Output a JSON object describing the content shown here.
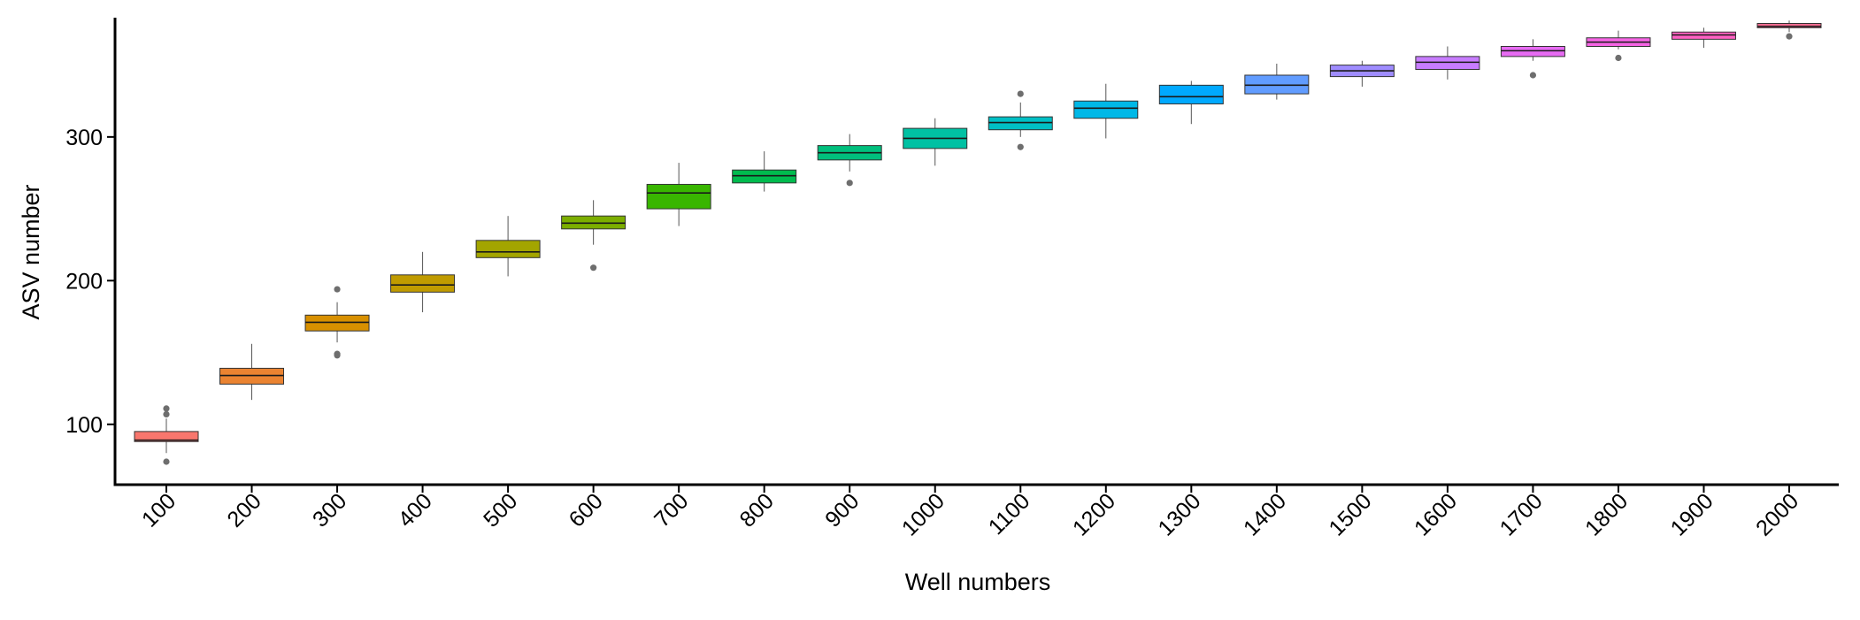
{
  "chart_data": {
    "type": "box",
    "title": "",
    "xlabel": "Well numbers",
    "ylabel": "ASV number",
    "ylim": [
      58,
      383
    ],
    "yticks": [
      100,
      200,
      300
    ],
    "grid": false,
    "legend": "none",
    "categories": [
      "100",
      "200",
      "300",
      "400",
      "500",
      "600",
      "700",
      "800",
      "900",
      "1000",
      "1100",
      "1200",
      "1300",
      "1400",
      "1500",
      "1600",
      "1700",
      "1800",
      "1900",
      "2000"
    ],
    "boxes": [
      {
        "label": "100",
        "color": "#F8766D",
        "whisker_low": 80,
        "q1": 88,
        "median": 89,
        "q3": 95,
        "whisker_high": 104,
        "outliers": [
          74,
          107,
          111
        ]
      },
      {
        "label": "200",
        "color": "#EA8331",
        "whisker_low": 117,
        "q1": 128,
        "median": 134,
        "q3": 139,
        "whisker_high": 156,
        "outliers": []
      },
      {
        "label": "300",
        "color": "#D89000",
        "whisker_low": 157,
        "q1": 165,
        "median": 171,
        "q3": 176,
        "whisker_high": 185,
        "outliers": [
          148,
          149,
          194
        ]
      },
      {
        "label": "400",
        "color": "#C09B00",
        "whisker_low": 178,
        "q1": 192,
        "median": 197,
        "q3": 204,
        "whisker_high": 220,
        "outliers": []
      },
      {
        "label": "500",
        "color": "#A3A500",
        "whisker_low": 203,
        "q1": 216,
        "median": 220,
        "q3": 228,
        "whisker_high": 245,
        "outliers": []
      },
      {
        "label": "600",
        "color": "#7CAE00",
        "whisker_low": 225,
        "q1": 236,
        "median": 240,
        "q3": 245,
        "whisker_high": 256,
        "outliers": [
          209
        ]
      },
      {
        "label": "700",
        "color": "#39B600",
        "whisker_low": 238,
        "q1": 250,
        "median": 261,
        "q3": 267,
        "whisker_high": 282,
        "outliers": []
      },
      {
        "label": "800",
        "color": "#00BB4E",
        "whisker_low": 262,
        "q1": 268,
        "median": 273,
        "q3": 277,
        "whisker_high": 290,
        "outliers": []
      },
      {
        "label": "900",
        "color": "#00BF7D",
        "whisker_low": 276,
        "q1": 284,
        "median": 289,
        "q3": 294,
        "whisker_high": 302,
        "outliers": [
          268
        ]
      },
      {
        "label": "1000",
        "color": "#00C1A3",
        "whisker_low": 280,
        "q1": 292,
        "median": 299,
        "q3": 306,
        "whisker_high": 313,
        "outliers": []
      },
      {
        "label": "1100",
        "color": "#00BFC4",
        "whisker_low": 300,
        "q1": 305,
        "median": 310,
        "q3": 314,
        "whisker_high": 324,
        "outliers": [
          293,
          330
        ]
      },
      {
        "label": "1200",
        "color": "#00B8E7",
        "whisker_low": 299,
        "q1": 313,
        "median": 320,
        "q3": 325,
        "whisker_high": 337,
        "outliers": []
      },
      {
        "label": "1300",
        "color": "#00A9FF",
        "whisker_low": 309,
        "q1": 323,
        "median": 328,
        "q3": 336,
        "whisker_high": 339,
        "outliers": []
      },
      {
        "label": "1400",
        "color": "#619CFF",
        "whisker_low": 326,
        "q1": 330,
        "median": 336,
        "q3": 343,
        "whisker_high": 351,
        "outliers": []
      },
      {
        "label": "1500",
        "color": "#9F8CFF",
        "whisker_low": 335,
        "q1": 342,
        "median": 346,
        "q3": 350,
        "whisker_high": 353,
        "outliers": []
      },
      {
        "label": "1600",
        "color": "#C77CFF",
        "whisker_low": 340,
        "q1": 347,
        "median": 352,
        "q3": 356,
        "whisker_high": 363,
        "outliers": []
      },
      {
        "label": "1700",
        "color": "#E76BF3",
        "whisker_low": 353,
        "q1": 356,
        "median": 360,
        "q3": 363,
        "whisker_high": 368,
        "outliers": [
          343
        ]
      },
      {
        "label": "1800",
        "color": "#F564E3",
        "whisker_low": 361,
        "q1": 363,
        "median": 366,
        "q3": 369,
        "whisker_high": 374,
        "outliers": [
          355
        ]
      },
      {
        "label": "1900",
        "color": "#FF61C3",
        "whisker_low": 362,
        "q1": 368,
        "median": 371,
        "q3": 373,
        "whisker_high": 376,
        "outliers": []
      },
      {
        "label": "2000",
        "color": "#FF6C91",
        "whisker_low": 373,
        "q1": 376,
        "median": 377,
        "q3": 379,
        "whisker_high": 381,
        "outliers": [
          370
        ]
      }
    ]
  }
}
